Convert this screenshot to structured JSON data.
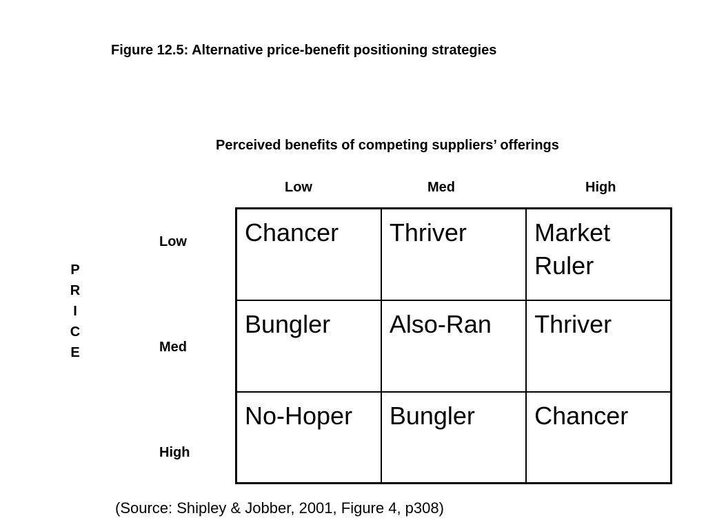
{
  "figure": {
    "title": "Figure 12.5: Alternative price-benefit positioning strategies",
    "column_axis_title": "Perceived benefits of competing suppliers’ offerings",
    "column_labels": [
      "Low",
      "Med",
      "High"
    ],
    "row_axis_title": "PRICE",
    "row_axis_letters": [
      "P",
      "R",
      "I",
      "C",
      "E"
    ],
    "row_labels": [
      "Low",
      "Med",
      "High"
    ],
    "cells": [
      [
        "Chancer",
        "Thriver",
        "Market Ruler"
      ],
      [
        "Bungler",
        "Also-Ran",
        "Thriver"
      ],
      [
        "No-Hoper",
        "Bungler",
        "Chancer"
      ]
    ],
    "source": "(Source: Shipley & Jobber, 2001, Figure 4, p308)"
  }
}
